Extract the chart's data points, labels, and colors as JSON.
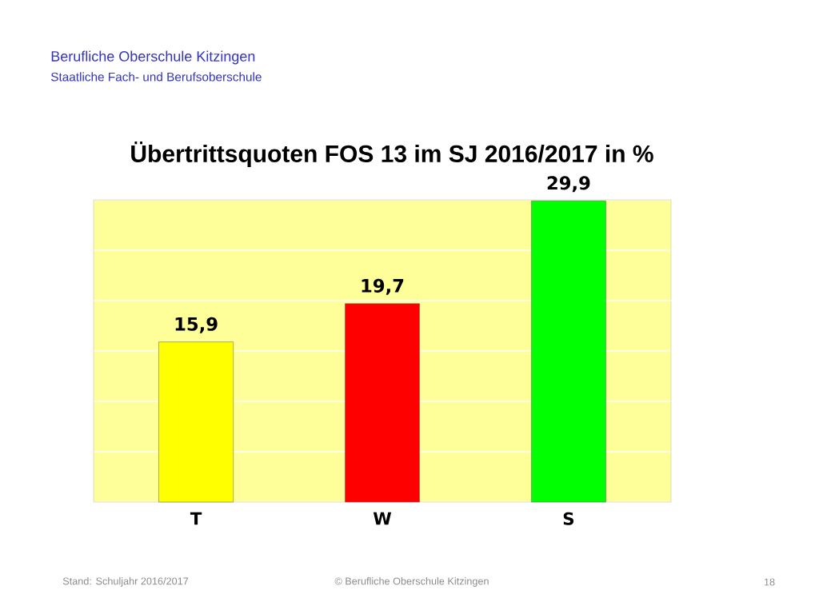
{
  "chart_data": {
    "type": "bar",
    "title": "Übertrittsquoten FOS 13 im SJ 2016/2017 in %",
    "categories": [
      "T",
      "W",
      "S"
    ],
    "values": [
      15.9,
      19.7,
      29.9
    ],
    "colors": [
      "#ffff00",
      "#ff0000",
      "#00ff00"
    ],
    "value_labels": [
      "15,9",
      "19,7",
      "29,9"
    ],
    "ylim": [
      0,
      30
    ],
    "yticks": [
      {
        "value": 0,
        "label": null
      },
      {
        "value": 5,
        "label": null
      },
      {
        "value": 10,
        "label": null
      },
      {
        "value": 15,
        "label": null
      },
      {
        "value": 20,
        "label": null
      },
      {
        "value": 25,
        "label": null
      },
      {
        "value": 30,
        "label": null
      }
    ],
    "grid": "y",
    "tick_labels": "x",
    "annotations": [
      "Berufliche Oberschule Kitzingen",
      "Staatliche Fach- und Berufsoberschule",
      "Stand: Schuljahr 2016/2017",
      "© Berufliche Oberschule Kitzingen",
      "18"
    ]
  }
}
